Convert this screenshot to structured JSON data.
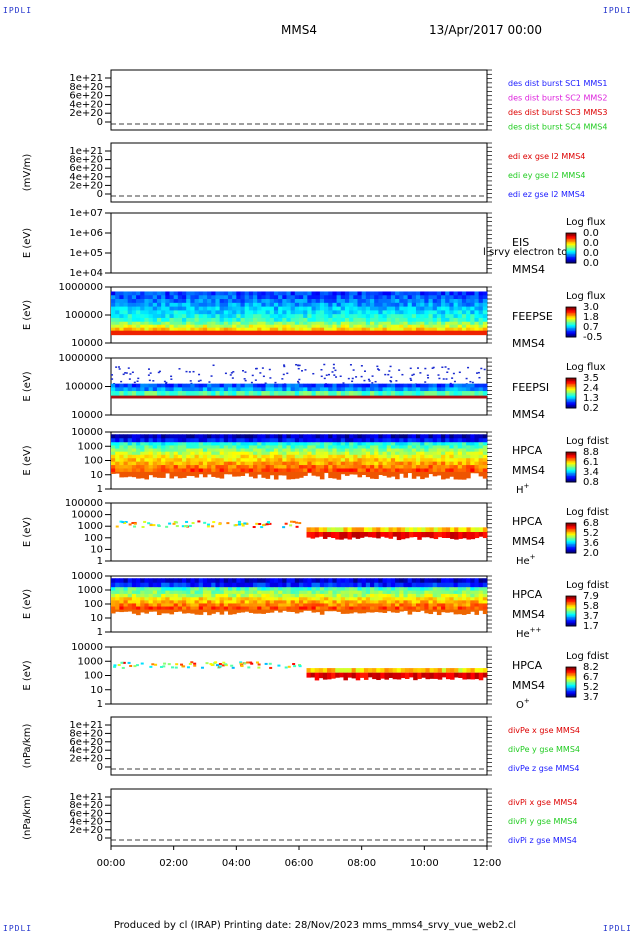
{
  "header": {
    "corner_label": "IPDLI",
    "spacecraft": "MMS4",
    "date_time": "13/Apr/2017 00:00"
  },
  "footer": {
    "text": "Produced by cl (IRAP)   Printing date: 28/Nov/2023   mms_mms4_srvy_vue_web2.cl"
  },
  "colors": {
    "blue": "#1a1aff",
    "magenta": "#dd22dd",
    "red": "#dd0000",
    "green": "#22cc22"
  },
  "chart_data": [
    {
      "type": "line",
      "ylabel": "",
      "yticks": [
        "1e+21",
        "8e+20",
        "6e+20",
        "4e+20",
        "2e+20",
        "0"
      ],
      "ylim": [
        0,
        1.1e+21
      ],
      "legend": [
        {
          "text": "des dist burst SC1 MMS1",
          "color": "#1a1aff"
        },
        {
          "text": "des dist burst SC2 MMS2",
          "color": "#dd22dd"
        },
        {
          "text": "des dist burst SC3 MMS3",
          "color": "#dd0000"
        },
        {
          "text": "des dist burst SC4 MMS4",
          "color": "#22cc22"
        }
      ],
      "zero_line": true
    },
    {
      "type": "line",
      "ylabel": "(mV/m)",
      "yticks": [
        "1e+21",
        "8e+20",
        "6e+20",
        "4e+20",
        "2e+20",
        "0"
      ],
      "ylim": [
        0,
        1.1e+21
      ],
      "legend": [
        {
          "text": "edi ex gse l2 MMS4",
          "color": "#dd0000"
        },
        {
          "text": "edi ey gse l2 MMS4",
          "color": "#22cc22"
        },
        {
          "text": "edi ez gse l2 MMS4",
          "color": "#1a1aff"
        }
      ],
      "zero_line": true
    },
    {
      "type": "heatmap",
      "ylabel": "E (eV)",
      "yticks": [
        "1e+07",
        "1e+06",
        "1e+05",
        "1e+04"
      ],
      "right_labels": [
        "EIS",
        "MMS4"
      ],
      "overlay_label": "l srvy electron to",
      "colorbar": {
        "title": "Log flux",
        "ticks": [
          "0.0",
          "0.0",
          "0.0",
          "0.0"
        ]
      },
      "fill": "none"
    },
    {
      "type": "heatmap",
      "ylabel": "E (eV)",
      "yticks": [
        "1000000",
        "100000",
        "10000"
      ],
      "right_labels": [
        "FEEPSE",
        "MMS4"
      ],
      "colorbar": {
        "title": "Log flux",
        "ticks": [
          "3.0",
          "1.8",
          "0.7",
          "-0.5"
        ]
      },
      "fill": "feeps_e"
    },
    {
      "type": "heatmap",
      "ylabel": "E (eV)",
      "yticks": [
        "1000000",
        "100000",
        "10000"
      ],
      "right_labels": [
        "FEEPSI",
        "MMS4"
      ],
      "colorbar": {
        "title": "Log flux",
        "ticks": [
          "3.5",
          "2.4",
          "1.3",
          "0.2"
        ]
      },
      "fill": "feeps_i"
    },
    {
      "type": "heatmap",
      "ylabel": "E (eV)",
      "yticks": [
        "10000",
        "1000",
        "100",
        "10",
        "1"
      ],
      "right_labels": [
        "HPCA",
        "MMS4"
      ],
      "species": "H",
      "species_sup": "+",
      "colorbar": {
        "title": "Log fdist",
        "ticks": [
          "8.8",
          "6.1",
          "3.4",
          "0.8"
        ]
      },
      "fill": "hpca_h"
    },
    {
      "type": "heatmap",
      "ylabel": "E (eV)",
      "yticks": [
        "100000",
        "10000",
        "1000",
        "100",
        "10",
        "1"
      ],
      "right_labels": [
        "HPCA",
        "MMS4"
      ],
      "species": "He",
      "species_sup": "+",
      "colorbar": {
        "title": "Log fdist",
        "ticks": [
          "6.8",
          "5.2",
          "3.6",
          "2.0"
        ]
      },
      "fill": "hpca_he1"
    },
    {
      "type": "heatmap",
      "ylabel": "E (eV)",
      "yticks": [
        "10000",
        "1000",
        "100",
        "10",
        "1"
      ],
      "right_labels": [
        "HPCA",
        "MMS4"
      ],
      "species": "He",
      "species_sup": "++",
      "colorbar": {
        "title": "Log fdist",
        "ticks": [
          "7.9",
          "5.8",
          "3.7",
          "1.7"
        ]
      },
      "fill": "hpca_he2"
    },
    {
      "type": "heatmap",
      "ylabel": "E (eV)",
      "yticks": [
        "10000",
        "1000",
        "100",
        "10",
        "1"
      ],
      "right_labels": [
        "HPCA",
        "MMS4"
      ],
      "species": "O",
      "species_sup": "+",
      "colorbar": {
        "title": "Log fdist",
        "ticks": [
          "8.2",
          "6.7",
          "5.2",
          "3.7"
        ]
      },
      "fill": "hpca_o"
    },
    {
      "type": "line",
      "ylabel": "(nPa/km)",
      "yticks": [
        "1e+21",
        "8e+20",
        "6e+20",
        "4e+20",
        "2e+20",
        "0"
      ],
      "ylim": [
        0,
        1.1e+21
      ],
      "legend": [
        {
          "text": "divPe x gse MMS4",
          "color": "#dd0000"
        },
        {
          "text": "divPe y gse MMS4",
          "color": "#22cc22"
        },
        {
          "text": "divPe z gse MMS4",
          "color": "#1a1aff"
        }
      ],
      "zero_line": true
    },
    {
      "type": "line",
      "ylabel": "(nPa/km)",
      "yticks": [
        "1e+21",
        "8e+20",
        "6e+20",
        "4e+20",
        "2e+20",
        "0"
      ],
      "ylim": [
        0,
        1.1e+21
      ],
      "legend": [
        {
          "text": "divPi x gse MMS4",
          "color": "#dd0000"
        },
        {
          "text": "divPi y gse MMS4",
          "color": "#22cc22"
        },
        {
          "text": "divPi z gse MMS4",
          "color": "#1a1aff"
        }
      ],
      "zero_line": true
    }
  ],
  "xaxis": {
    "ticks": [
      "00:00",
      "02:00",
      "04:00",
      "06:00",
      "08:00",
      "10:00",
      "12:00"
    ]
  }
}
